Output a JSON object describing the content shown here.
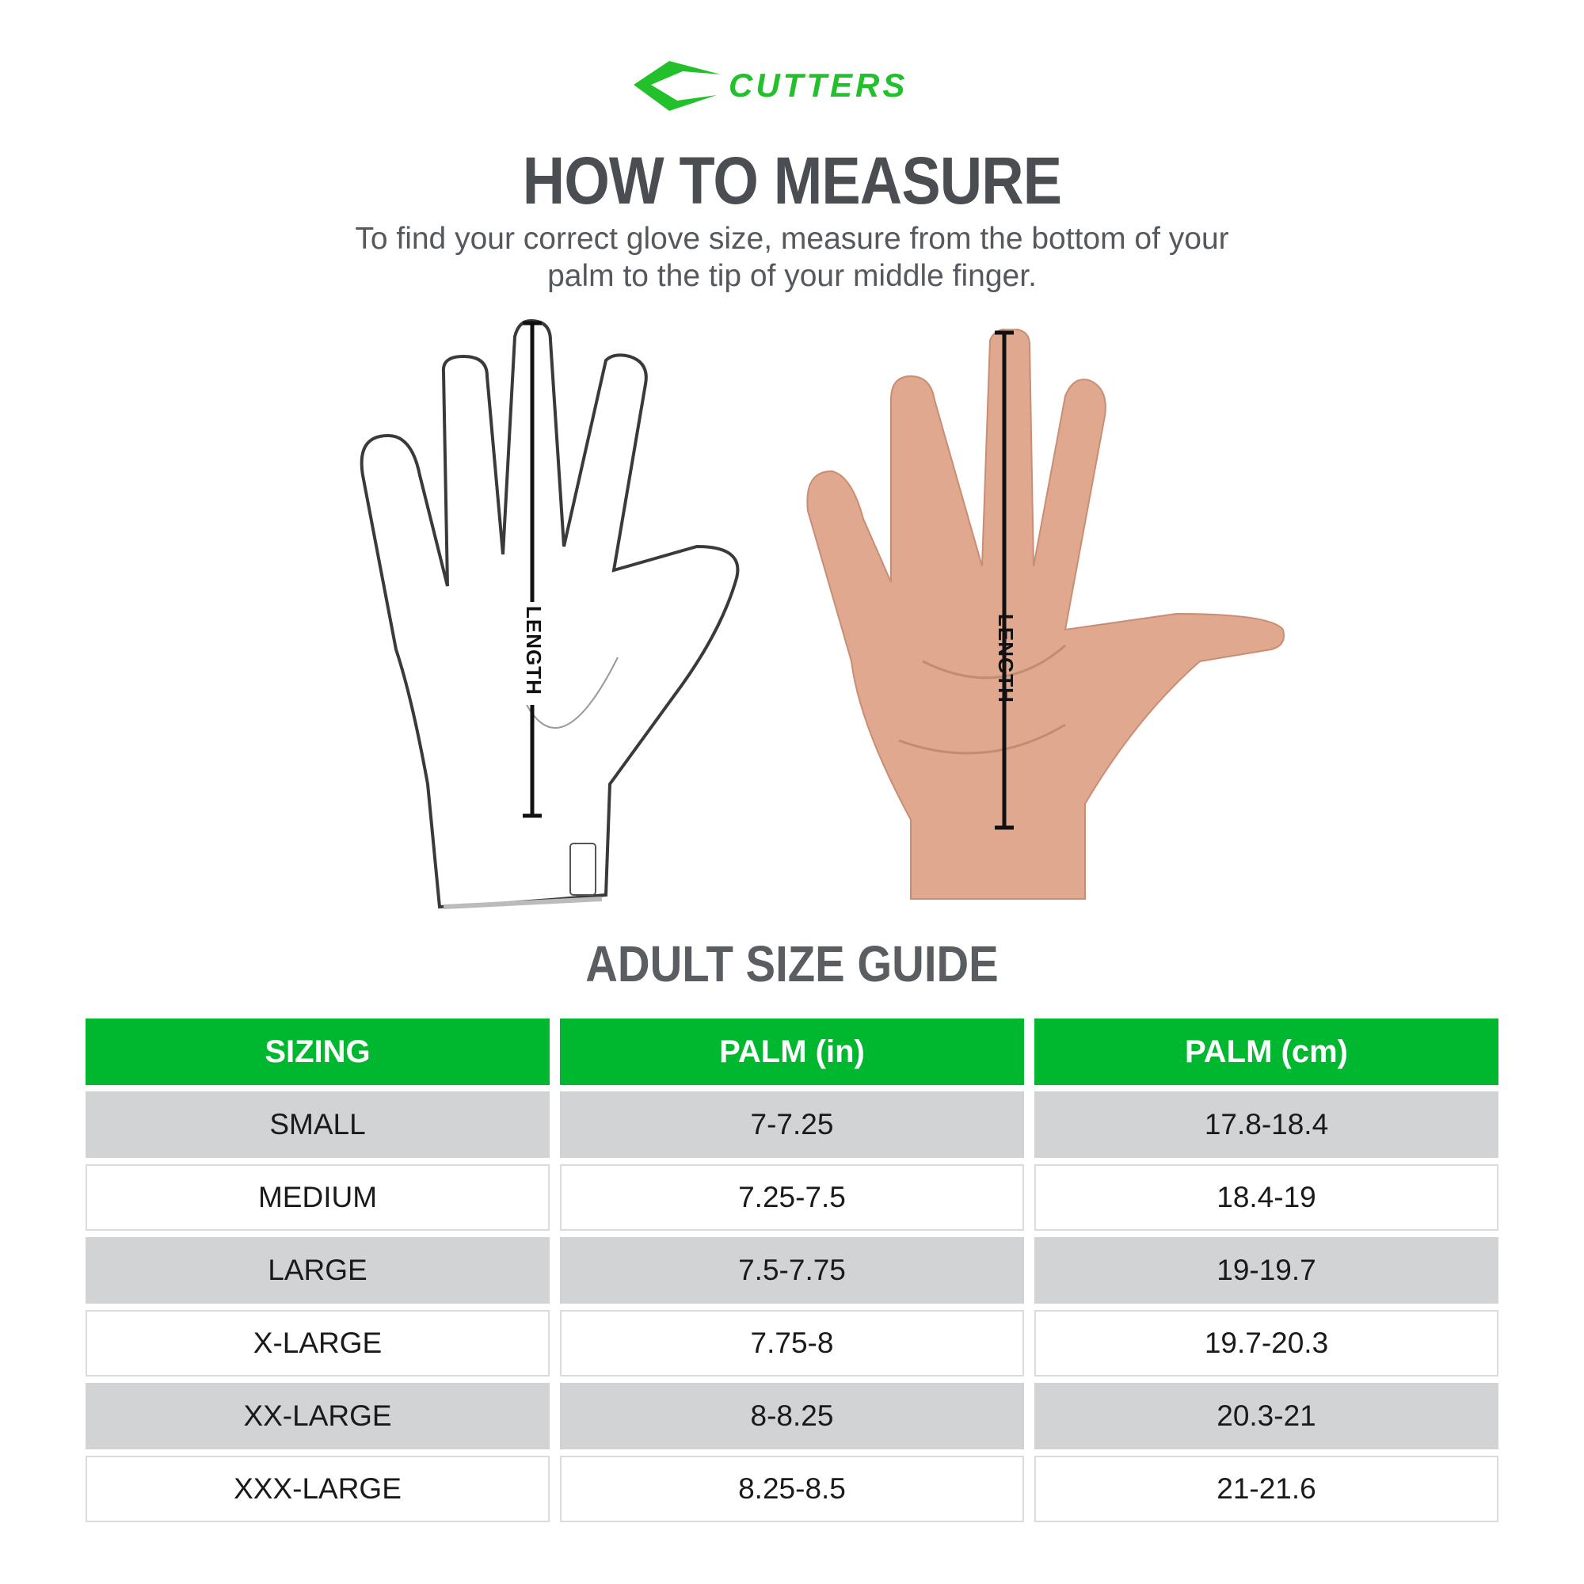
{
  "brand": {
    "name": "CUTTERS",
    "color": "#22c02a"
  },
  "header": {
    "title": "HOW TO MEASURE",
    "subtitle_line1": "To find your correct glove size, measure from the bottom of your",
    "subtitle_line2": "palm to the tip of your middle finger."
  },
  "illustrations": {
    "glove_label": "LENGTH",
    "hand_label": "LENGTH"
  },
  "size_guide": {
    "title": "ADULT SIZE GUIDE",
    "header_color": "#00b82f",
    "columns": [
      "SIZING",
      "PALM (in)",
      "PALM (cm)"
    ],
    "rows": [
      [
        "SMALL",
        "7-7.25",
        "17.8-18.4"
      ],
      [
        "MEDIUM",
        "7.25-7.5",
        "18.4-19"
      ],
      [
        "LARGE",
        "7.5-7.75",
        "19-19.7"
      ],
      [
        "X-LARGE",
        "7.75-8",
        "19.7-20.3"
      ],
      [
        "XX-LARGE",
        "8-8.25",
        "20.3-21"
      ],
      [
        "XXX-LARGE",
        "8.25-8.5",
        "21-21.6"
      ]
    ]
  }
}
